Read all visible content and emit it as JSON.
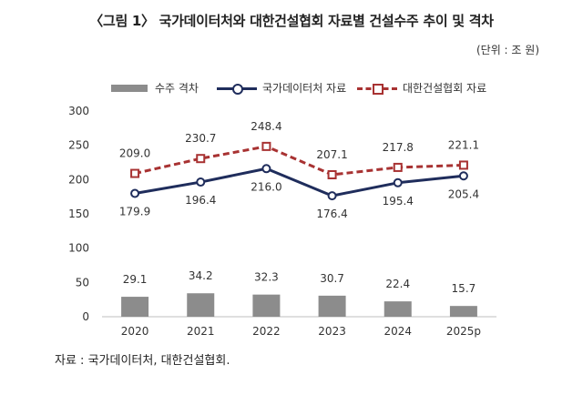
{
  "header": {
    "title": "〈그림 1〉 국가데이터처와 대한건설협회 자료별 건설수주 추이 및 격차",
    "unit": "(단위 : 조 원)"
  },
  "legend": {
    "gap": "수주 격차",
    "kostat": "국가데이터처 자료",
    "cak": "대한건설협회 자료"
  },
  "source": "자료 : 국가데이터처, 대한건설협회.",
  "colors": {
    "bar": "#8c8c8c",
    "kostat_line": "#1f2d5c",
    "cak_line": "#a83232"
  },
  "chart_data": {
    "type": "bar+line",
    "categories": [
      "2020",
      "2021",
      "2022",
      "2023",
      "2024",
      "2025p"
    ],
    "ylim": [
      0,
      300
    ],
    "yticks": [
      0,
      50,
      100,
      150,
      200,
      250,
      300
    ],
    "grid": false,
    "legend_position": "top",
    "series": [
      {
        "name": "수주 격차",
        "type": "bar",
        "values": [
          29.1,
          34.2,
          32.3,
          30.7,
          22.4,
          15.7
        ]
      },
      {
        "name": "국가데이터처 자료",
        "type": "line",
        "marker": "circle",
        "values": [
          179.9,
          196.4,
          216.0,
          176.4,
          195.4,
          205.4
        ]
      },
      {
        "name": "대한건설협회 자료",
        "type": "line",
        "style": "dashed",
        "marker": "square",
        "values": [
          209.0,
          230.7,
          248.4,
          207.1,
          217.8,
          221.1
        ]
      }
    ]
  }
}
